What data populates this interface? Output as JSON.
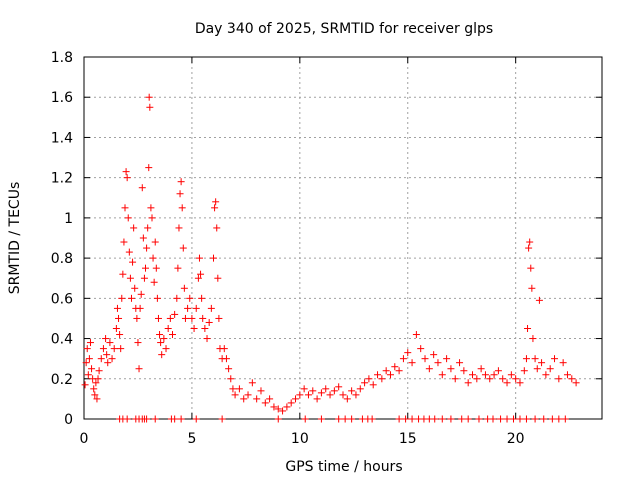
{
  "chart_data": {
    "type": "scatter",
    "title": "Day 340 of 2025, SRMTID for receiver glps",
    "xlabel": "GPS time / hours",
    "ylabel": "SRMTID / TECUs",
    "xlim": [
      0,
      24
    ],
    "ylim": [
      0,
      1.8
    ],
    "xticks": [
      0,
      5,
      10,
      15,
      20
    ],
    "xtick_labels": [
      "0",
      "5",
      "10",
      "15",
      "20"
    ],
    "yticks": [
      0,
      0.2,
      0.4,
      0.6,
      0.8,
      1,
      1.2,
      1.4,
      1.6,
      1.8
    ],
    "ytick_labels": [
      "0",
      "0.2",
      "0.4",
      "0.6",
      "0.8",
      "1",
      "1.2",
      "1.4",
      "1.6",
      "1.8"
    ],
    "grid": true,
    "marker": "+",
    "series": [
      {
        "name": "SRMTID",
        "color": "#ff0000",
        "points": [
          [
            0.05,
            0.17
          ],
          [
            0.1,
            0.28
          ],
          [
            0.15,
            0.35
          ],
          [
            0.2,
            0.22
          ],
          [
            0.25,
            0.3
          ],
          [
            0.3,
            0.38
          ],
          [
            0.35,
            0.25
          ],
          [
            0.4,
            0.2
          ],
          [
            0.45,
            0.15
          ],
          [
            0.5,
            0.12
          ],
          [
            0.55,
            0.18
          ],
          [
            0.6,
            0.1
          ],
          [
            0.65,
            0.2
          ],
          [
            0.7,
            0.24
          ],
          [
            0.8,
            0.3
          ],
          [
            0.9,
            0.35
          ],
          [
            1.0,
            0.4
          ],
          [
            1.05,
            0.32
          ],
          [
            1.1,
            0.28
          ],
          [
            1.2,
            0.38
          ],
          [
            1.3,
            0.3
          ],
          [
            1.4,
            0.35
          ],
          [
            1.5,
            0.45
          ],
          [
            1.55,
            0.55
          ],
          [
            1.6,
            0.5
          ],
          [
            1.65,
            0.42
          ],
          [
            1.7,
            0.35
          ],
          [
            1.75,
            0.6
          ],
          [
            1.8,
            0.72
          ],
          [
            1.85,
            0.88
          ],
          [
            1.9,
            1.05
          ],
          [
            1.95,
            1.23
          ],
          [
            2.0,
            1.2
          ],
          [
            2.05,
            1.0
          ],
          [
            2.1,
            0.83
          ],
          [
            2.15,
            0.7
          ],
          [
            2.2,
            0.6
          ],
          [
            2.25,
            0.78
          ],
          [
            2.3,
            0.95
          ],
          [
            2.35,
            0.65
          ],
          [
            2.4,
            0.55
          ],
          [
            2.45,
            0.5
          ],
          [
            2.5,
            0.38
          ],
          [
            2.55,
            0.25
          ],
          [
            2.6,
            0.55
          ],
          [
            2.65,
            0.62
          ],
          [
            2.7,
            1.15
          ],
          [
            2.75,
            0.9
          ],
          [
            2.8,
            0.7
          ],
          [
            2.85,
            0.75
          ],
          [
            2.9,
            0.85
          ],
          [
            2.95,
            0.95
          ],
          [
            3.0,
            1.25
          ],
          [
            3.02,
            1.6
          ],
          [
            3.05,
            1.55
          ],
          [
            3.1,
            1.05
          ],
          [
            3.15,
            1.0
          ],
          [
            3.2,
            0.8
          ],
          [
            3.25,
            0.68
          ],
          [
            3.3,
            0.88
          ],
          [
            3.35,
            0.75
          ],
          [
            3.4,
            0.6
          ],
          [
            3.45,
            0.5
          ],
          [
            3.5,
            0.42
          ],
          [
            3.55,
            0.38
          ],
          [
            3.6,
            0.32
          ],
          [
            3.7,
            0.4
          ],
          [
            3.8,
            0.35
          ],
          [
            3.9,
            0.45
          ],
          [
            4.0,
            0.5
          ],
          [
            4.1,
            0.42
          ],
          [
            4.2,
            0.52
          ],
          [
            4.3,
            0.6
          ],
          [
            4.35,
            0.75
          ],
          [
            4.4,
            0.95
          ],
          [
            4.45,
            1.12
          ],
          [
            4.5,
            1.18
          ],
          [
            4.55,
            1.05
          ],
          [
            4.6,
            0.85
          ],
          [
            4.65,
            0.65
          ],
          [
            4.7,
            0.5
          ],
          [
            4.8,
            0.55
          ],
          [
            4.9,
            0.6
          ],
          [
            5.0,
            0.5
          ],
          [
            5.1,
            0.45
          ],
          [
            5.2,
            0.55
          ],
          [
            5.3,
            0.7
          ],
          [
            5.35,
            0.8
          ],
          [
            5.4,
            0.72
          ],
          [
            5.45,
            0.6
          ],
          [
            5.5,
            0.5
          ],
          [
            5.6,
            0.45
          ],
          [
            5.7,
            0.4
          ],
          [
            5.8,
            0.48
          ],
          [
            5.9,
            0.55
          ],
          [
            6.0,
            0.8
          ],
          [
            6.05,
            1.05
          ],
          [
            6.1,
            1.08
          ],
          [
            6.15,
            0.95
          ],
          [
            6.2,
            0.7
          ],
          [
            6.25,
            0.5
          ],
          [
            6.3,
            0.35
          ],
          [
            6.4,
            0.3
          ],
          [
            6.5,
            0.35
          ],
          [
            6.6,
            0.3
          ],
          [
            6.7,
            0.25
          ],
          [
            6.8,
            0.2
          ],
          [
            6.9,
            0.15
          ],
          [
            7.0,
            0.12
          ],
          [
            7.2,
            0.15
          ],
          [
            7.4,
            0.1
          ],
          [
            7.6,
            0.12
          ],
          [
            7.8,
            0.18
          ],
          [
            8.0,
            0.1
          ],
          [
            8.2,
            0.14
          ],
          [
            8.4,
            0.08
          ],
          [
            8.6,
            0.1
          ],
          [
            8.8,
            0.06
          ],
          [
            9.0,
            0.05
          ],
          [
            9.2,
            0.04
          ],
          [
            9.4,
            0.06
          ],
          [
            9.6,
            0.08
          ],
          [
            9.8,
            0.1
          ],
          [
            10.0,
            0.12
          ],
          [
            10.2,
            0.15
          ],
          [
            10.4,
            0.12
          ],
          [
            10.6,
            0.14
          ],
          [
            10.8,
            0.1
          ],
          [
            11.0,
            0.13
          ],
          [
            11.2,
            0.15
          ],
          [
            11.4,
            0.12
          ],
          [
            11.6,
            0.14
          ],
          [
            11.8,
            0.16
          ],
          [
            12.0,
            0.12
          ],
          [
            12.2,
            0.1
          ],
          [
            12.4,
            0.14
          ],
          [
            12.6,
            0.12
          ],
          [
            12.8,
            0.15
          ],
          [
            13.0,
            0.18
          ],
          [
            13.2,
            0.2
          ],
          [
            13.4,
            0.17
          ],
          [
            13.6,
            0.22
          ],
          [
            13.8,
            0.2
          ],
          [
            14.0,
            0.24
          ],
          [
            14.2,
            0.22
          ],
          [
            14.4,
            0.26
          ],
          [
            14.6,
            0.24
          ],
          [
            14.8,
            0.3
          ],
          [
            15.0,
            0.33
          ],
          [
            15.2,
            0.28
          ],
          [
            15.4,
            0.42
          ],
          [
            15.6,
            0.35
          ],
          [
            15.8,
            0.3
          ],
          [
            16.0,
            0.25
          ],
          [
            16.2,
            0.32
          ],
          [
            16.4,
            0.28
          ],
          [
            16.6,
            0.22
          ],
          [
            16.8,
            0.3
          ],
          [
            17.0,
            0.25
          ],
          [
            17.2,
            0.2
          ],
          [
            17.4,
            0.28
          ],
          [
            17.6,
            0.24
          ],
          [
            17.8,
            0.18
          ],
          [
            18.0,
            0.22
          ],
          [
            18.2,
            0.2
          ],
          [
            18.4,
            0.25
          ],
          [
            18.6,
            0.22
          ],
          [
            18.8,
            0.2
          ],
          [
            19.0,
            0.22
          ],
          [
            19.2,
            0.24
          ],
          [
            19.4,
            0.2
          ],
          [
            19.6,
            0.18
          ],
          [
            19.8,
            0.22
          ],
          [
            20.0,
            0.2
          ],
          [
            20.2,
            0.18
          ],
          [
            20.4,
            0.24
          ],
          [
            20.5,
            0.3
          ],
          [
            20.55,
            0.45
          ],
          [
            20.6,
            0.85
          ],
          [
            20.65,
            0.88
          ],
          [
            20.7,
            0.75
          ],
          [
            20.75,
            0.65
          ],
          [
            20.8,
            0.4
          ],
          [
            20.9,
            0.3
          ],
          [
            21.0,
            0.25
          ],
          [
            21.1,
            0.59
          ],
          [
            21.2,
            0.28
          ],
          [
            21.4,
            0.22
          ],
          [
            21.6,
            0.25
          ],
          [
            21.8,
            0.3
          ],
          [
            22.0,
            0.2
          ],
          [
            22.2,
            0.28
          ],
          [
            22.4,
            0.22
          ],
          [
            22.6,
            0.2
          ],
          [
            22.8,
            0.18
          ],
          [
            1.65,
            0
          ],
          [
            1.8,
            0
          ],
          [
            2.0,
            0
          ],
          [
            2.4,
            0
          ],
          [
            2.55,
            0
          ],
          [
            2.7,
            0
          ],
          [
            2.8,
            0
          ],
          [
            2.9,
            0
          ],
          [
            3.3,
            0
          ],
          [
            4.05,
            0
          ],
          [
            4.2,
            0
          ],
          [
            4.5,
            0
          ],
          [
            5.2,
            0
          ],
          [
            6.4,
            0
          ],
          [
            9.0,
            0
          ],
          [
            10.25,
            0
          ],
          [
            11.0,
            0
          ],
          [
            11.8,
            0
          ],
          [
            12.1,
            0
          ],
          [
            12.4,
            0
          ],
          [
            12.9,
            0
          ],
          [
            13.15,
            0
          ],
          [
            13.35,
            0
          ],
          [
            14.6,
            0
          ],
          [
            14.9,
            0
          ],
          [
            15.2,
            0
          ],
          [
            15.5,
            0
          ],
          [
            15.75,
            0
          ],
          [
            16.0,
            0
          ],
          [
            16.25,
            0
          ],
          [
            16.6,
            0
          ],
          [
            17.0,
            0
          ],
          [
            17.5,
            0
          ],
          [
            17.8,
            0
          ],
          [
            18.3,
            0
          ],
          [
            18.7,
            0
          ],
          [
            18.95,
            0
          ],
          [
            19.3,
            0
          ],
          [
            19.6,
            0
          ],
          [
            19.9,
            0
          ],
          [
            20.2,
            0
          ],
          [
            20.5,
            0
          ],
          [
            20.9,
            0
          ],
          [
            21.3,
            0
          ],
          [
            21.7,
            0
          ],
          [
            22.0,
            0
          ],
          [
            22.3,
            0
          ]
        ]
      }
    ]
  }
}
